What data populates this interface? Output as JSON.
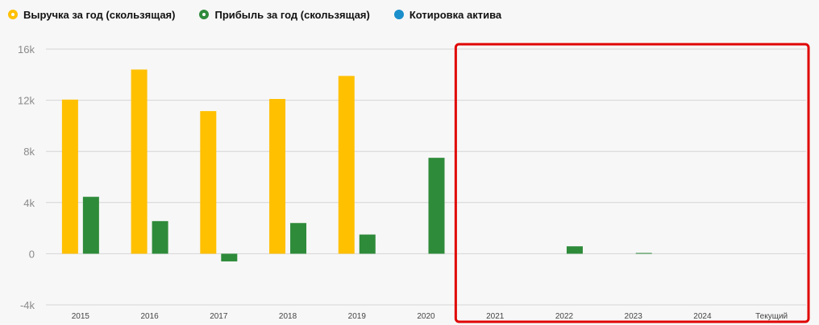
{
  "legend": [
    {
      "label": "Выручка за год (скользящая)",
      "color": "#FFC000",
      "style": "ring"
    },
    {
      "label": "Прибыль за год (скользящая)",
      "color": "#2E8B3A",
      "style": "ring"
    },
    {
      "label": "Котировка актива",
      "color": "#1A8FCB",
      "style": "filled"
    }
  ],
  "highlight": {
    "color": "#E00000",
    "from_category": "2021",
    "to_category": "Текущий"
  },
  "chart_data": {
    "type": "bar",
    "categories": [
      "2015",
      "2016",
      "2017",
      "2018",
      "2019",
      "2020",
      "2021",
      "2022",
      "2023",
      "2024",
      "Текущий"
    ],
    "series": [
      {
        "name": "Выручка за год (скользящая)",
        "color": "#FFC000",
        "values": [
          12050,
          14400,
          11150,
          12100,
          13900,
          null,
          null,
          null,
          null,
          null,
          null
        ]
      },
      {
        "name": "Прибыль за год (скользящая)",
        "color": "#2E8B3A",
        "values": [
          4450,
          2550,
          -600,
          2400,
          1500,
          7500,
          null,
          580,
          60,
          null,
          null
        ]
      }
    ],
    "yticks": [
      -4000,
      0,
      4000,
      8000,
      12000,
      16000
    ],
    "ytick_labels": [
      "-4k",
      "0",
      "4k",
      "8k",
      "12k",
      "16k"
    ],
    "ylim": [
      -4000,
      16000
    ],
    "grid": true,
    "legend_position": "top-left"
  }
}
